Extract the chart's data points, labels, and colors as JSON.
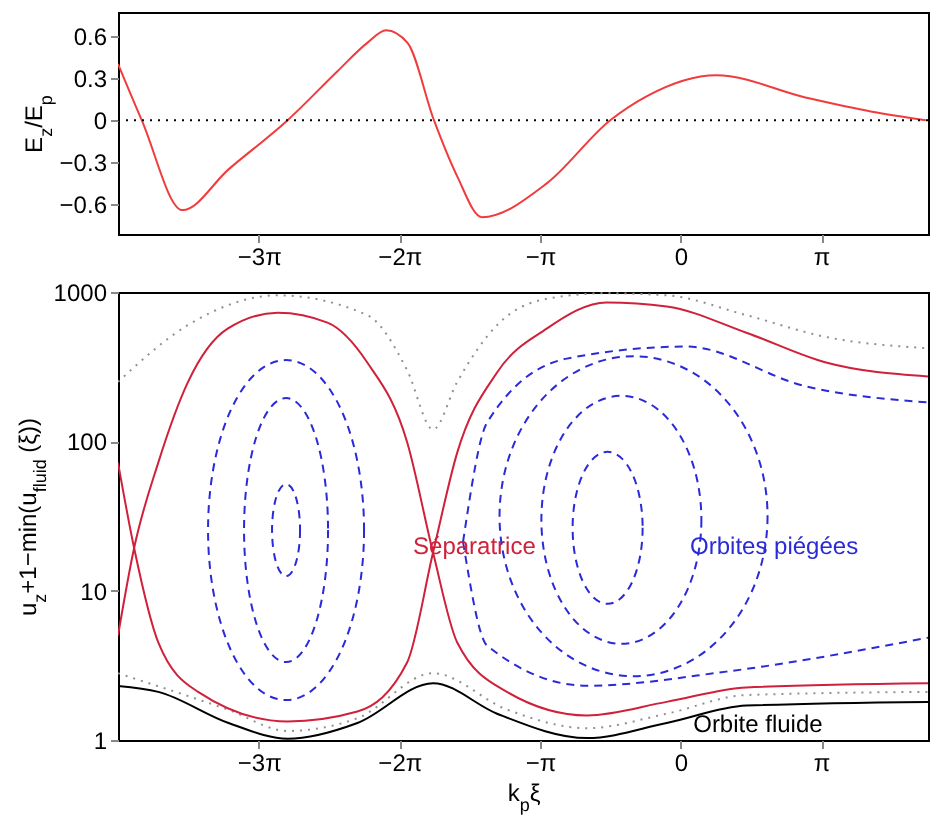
{
  "chart_data": [
    {
      "type": "line",
      "ylabel": "E$_{z}$/E$_{p}$",
      "xlim": [
        -12.57,
        5.53
      ],
      "xticks": [
        {
          "value": -9.42478,
          "label": "−3π"
        },
        {
          "value": -6.28319,
          "label": "−2π"
        },
        {
          "value": -3.14159,
          "label": "−π"
        },
        {
          "value": 0,
          "label": "0"
        },
        {
          "value": 3.14159,
          "label": "π"
        }
      ],
      "ylim": [
        -0.81,
        0.77
      ],
      "yticks": [
        -0.6,
        -0.3,
        0,
        0.3,
        0.6
      ],
      "grid": false,
      "ref_lines": [
        {
          "axis": "y",
          "value": 0,
          "color": "#000000",
          "line_style": "dotted"
        }
      ],
      "series": [
        {
          "color": "#f03c3c",
          "line_style": "solid",
          "x": [
            -12.57,
            -12.04,
            -11.13,
            -10.1,
            -8.78,
            -7.66,
            -7.0,
            -6.58,
            -6.1,
            -5.51,
            -4.99,
            -4.44,
            -2.99,
            -1.57,
            -0.76,
            0.8,
            2.81,
            4.28,
            5.48
          ],
          "values": [
            0.4,
            0.0,
            -0.64,
            -0.35,
            0.0,
            0.35,
            0.55,
            0.64,
            0.55,
            0.0,
            -0.4,
            -0.69,
            -0.45,
            0.0,
            0.17,
            0.32,
            0.16,
            0.06,
            0.0
          ]
        }
      ]
    },
    {
      "type": "line",
      "xlabel": "k$_{p}$ξ",
      "ylabel": "u$_{z}$+1−min(u$_{fluid}$ (ξ))",
      "xlim": [
        -12.57,
        5.53
      ],
      "xticks": [
        {
          "value": -9.42478,
          "label": "−3π"
        },
        {
          "value": -6.28319,
          "label": "−2π"
        },
        {
          "value": -3.14159,
          "label": "−π"
        },
        {
          "value": 0,
          "label": "0"
        },
        {
          "value": 3.14159,
          "label": "π"
        }
      ],
      "ylim": [
        1,
        1000
      ],
      "yticks": [
        1,
        10,
        100,
        1000
      ],
      "log": "y",
      "grid": false,
      "series": [
        {
          "color": "#909090",
          "line_style": "dotted",
          "x": [
            -12.57,
            -11.01,
            -9.0,
            -7.0,
            -6.11,
            -5.53,
            -4.99,
            -4.1,
            -2.99,
            -1.65,
            -0.31,
            1.47,
            3.25,
            5.53
          ],
          "values": [
            250,
            600,
            950,
            700,
            300,
            120,
            250,
            600,
            900,
            980,
            950,
            700,
            500,
            420
          ]
        },
        {
          "color": "#909090",
          "line_style": "dotted",
          "x": [
            -12.57,
            -10.12,
            -8.78,
            -7.22,
            -5.53,
            -3.88,
            -2.09,
            -0.31,
            1.47,
            5.53
          ],
          "values": [
            2.8,
            1.6,
            1.15,
            1.4,
            2.8,
            1.6,
            1.2,
            1.5,
            2.0,
            2.1
          ]
        },
        {
          "name": "Orbites piégées",
          "color": "#2a2ad8",
          "line_style": "dashed",
          "x": [
            -4.86,
            -4.32,
            -2.54,
            0.13,
            2.81,
            5.53
          ],
          "values": [
            21.2,
            134,
            358,
            431,
            233,
            182
          ]
        },
        {
          "color": "#2a2ad8",
          "line_style": "dashed",
          "x": [
            -4.86,
            -4.32,
            -2.09,
            1.02,
            5.53
          ],
          "values": [
            21.2,
            4.28,
            2.31,
            2.87,
            4.84
          ]
        },
        {
          "name": "Orbite fluide",
          "color": "#000000",
          "line_style": "solid",
          "x": [
            -12.57,
            -11.67,
            -10.1,
            -8.78,
            -7.22,
            -5.53,
            -4.1,
            -2.09,
            -0.31,
            1.47,
            5.53
          ],
          "values": [
            2.3,
            2.1,
            1.3,
            1.02,
            1.3,
            2.4,
            1.5,
            1.03,
            1.3,
            1.7,
            1.8
          ]
        },
        {
          "name": "Séparatrice",
          "color": "#d0203a",
          "line_style": "solid",
          "x": [
            -12.57,
            -12.21,
            -11.67,
            -10.78,
            -8.78,
            -7.22,
            -6.11,
            -5.53,
            -4.99,
            -4.1,
            -2.99,
            -1.65,
            -0.31,
            1.47,
            3.25,
            5.53
          ],
          "values": [
            72,
            19.3,
            4.5,
            2.1,
            1.33,
            1.55,
            3.3,
            18,
            84,
            289,
            568,
            851,
            800,
            534,
            337,
            272
          ]
        },
        {
          "color": "#d0203a",
          "line_style": "solid",
          "x": [
            -12.57,
            -12.21,
            -11.67,
            -11.01,
            -10.12,
            -9.0,
            -7.89,
            -7.0,
            -6.11,
            -5.53,
            -4.99,
            -3.88,
            -2.09,
            -0.31,
            1.47,
            5.53
          ],
          "values": [
            5.0,
            19.3,
            72,
            248,
            568,
            726,
            623,
            337,
            99,
            18,
            4.5,
            2.1,
            1.46,
            1.8,
            2.25,
            2.4
          ]
        }
      ]
    }
  ]
}
